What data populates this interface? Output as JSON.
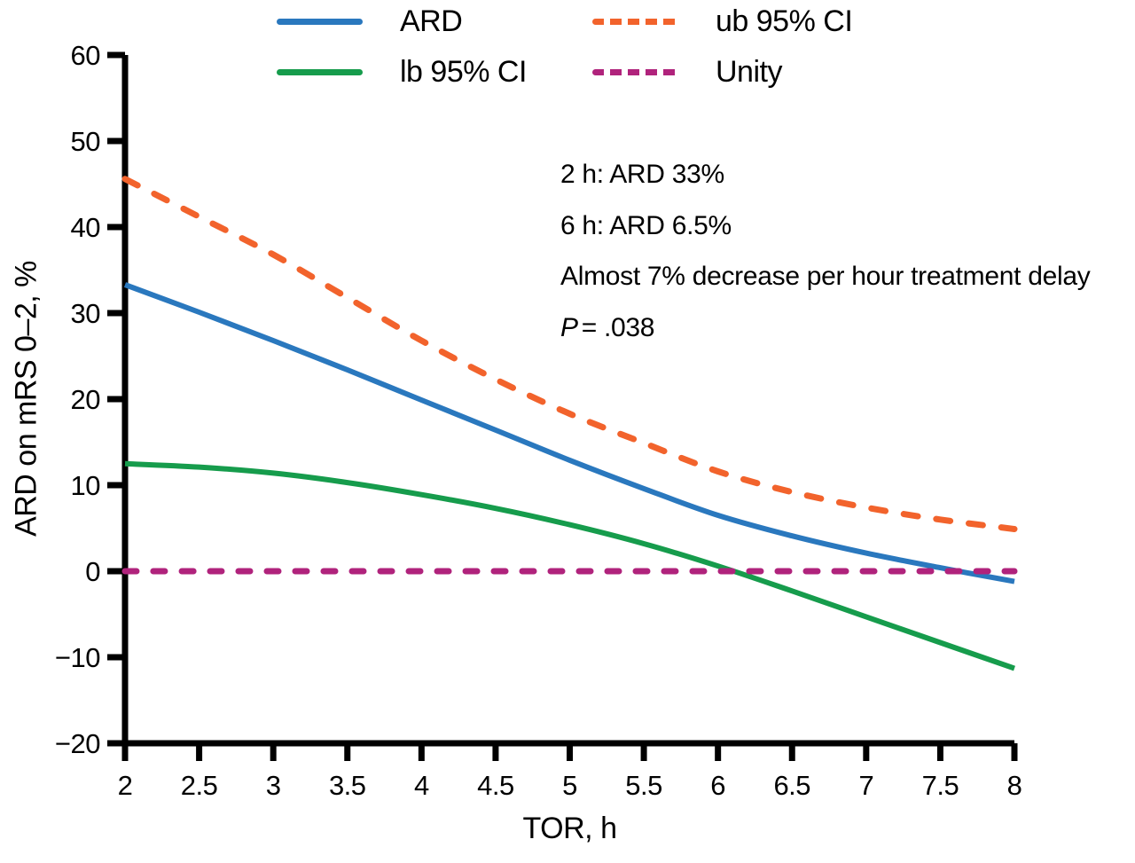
{
  "colors": {
    "axis": "#000000",
    "background": "#ffffff",
    "text": "#000000"
  },
  "annotations": {
    "line1": "2 h: ARD 33%",
    "line2": "6 h: ARD 6.5%",
    "line3": "Almost 7% decrease per hour treatment delay",
    "p_label": "P",
    "p_value": "= .038"
  },
  "chart_data": {
    "type": "line",
    "title": "",
    "xlabel": "TOR, h",
    "ylabel": "ARD on mRS 0–2, %",
    "xlim": [
      2,
      8
    ],
    "ylim": [
      -20,
      60
    ],
    "grid": false,
    "legend_position": "top",
    "x_ticks": {
      "values": [
        2,
        2.5,
        3,
        3.5,
        4,
        4.5,
        5,
        5.5,
        6,
        6.5,
        7,
        7.5,
        8
      ],
      "labels": [
        "2",
        "2.5",
        "3",
        "3.5",
        "4",
        "4.5",
        "5",
        "5.5",
        "6",
        "6.5",
        "7",
        "7.5",
        "8"
      ]
    },
    "y_ticks": {
      "values": [
        60,
        50,
        40,
        30,
        20,
        10,
        0,
        -10,
        -20
      ],
      "labels": [
        "60",
        "50",
        "40",
        "30",
        "20",
        "10",
        "0",
        "−10",
        "−20"
      ]
    },
    "x": [
      2,
      2.5,
      3,
      3.5,
      4,
      4.5,
      5,
      5.5,
      6,
      6.5,
      7,
      7.5,
      8
    ],
    "series": [
      {
        "name": "ARD",
        "color": "#2A78BE",
        "line": "solid",
        "width": 6,
        "dash": null,
        "values": [
          33.3,
          30.1,
          26.8,
          23.4,
          19.9,
          16.4,
          12.9,
          9.6,
          6.5,
          4.1,
          2.1,
          0.4,
          -1.2
        ]
      },
      {
        "name": "lb 95% CI",
        "color": "#169C4C",
        "line": "solid",
        "width": 6,
        "dash": null,
        "values": [
          12.5,
          12.1,
          11.4,
          10.3,
          8.9,
          7.3,
          5.4,
          3.2,
          0.6,
          -2.3,
          -5.3,
          -8.3,
          -11.3
        ]
      },
      {
        "name": "ub 95% CI",
        "color": "#F2632C",
        "line": "dashed",
        "width": 7,
        "dash": [
          16,
          21
        ],
        "values": [
          45.6,
          41.2,
          36.8,
          31.8,
          26.8,
          22.3,
          18.3,
          14.9,
          11.6,
          9.2,
          7.4,
          6.0,
          4.9
        ]
      },
      {
        "name": "Unity",
        "color": "#B0237C",
        "line": "dashed",
        "width": 7,
        "dash": [
          13,
          19
        ],
        "values": [
          0,
          0,
          0,
          0,
          0,
          0,
          0,
          0,
          0,
          0,
          0,
          0,
          0
        ]
      }
    ]
  }
}
